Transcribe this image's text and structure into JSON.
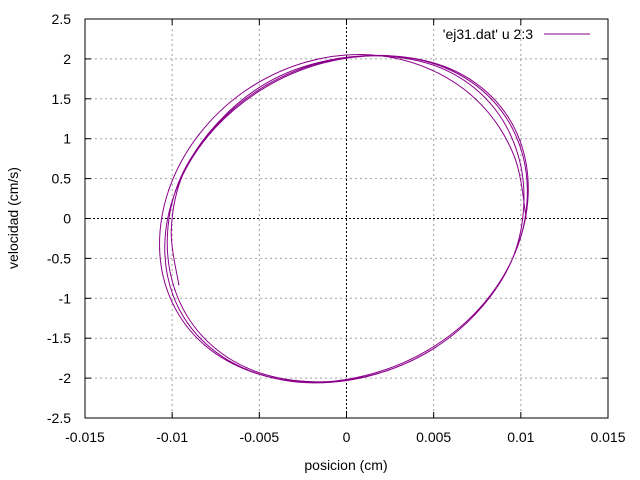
{
  "chart_data": {
    "type": "line",
    "title": "",
    "xlabel": "posicion (cm)",
    "ylabel": "velocidad (cm/s)",
    "xlim": [
      -0.015,
      0.015
    ],
    "ylim": [
      -2.5,
      2.5
    ],
    "xticks": [
      -0.015,
      -0.01,
      -0.005,
      0,
      0.005,
      0.01,
      0.015
    ],
    "xtick_labels": [
      "-0.015",
      "-0.01",
      "-0.005",
      "0",
      "0.005",
      "0.01",
      "0.015"
    ],
    "yticks": [
      -2.5,
      -2,
      -1.5,
      -1,
      -0.5,
      0,
      0.5,
      1,
      1.5,
      2,
      2.5
    ],
    "ytick_labels": [
      "-2.5",
      "-2",
      "-1.5",
      "-1",
      "-0.5",
      "0",
      "0.5",
      "1",
      "1.5",
      "2",
      "2.5"
    ],
    "grid": true,
    "zero_axes": true,
    "legend_position": "top-right",
    "series": [
      {
        "name": "'ej31.dat' u 2:3",
        "color": "#8b008b",
        "x": [
          0.01031,
          0.00964,
          0.00776,
          0.00489,
          0.00138,
          -0.00232,
          -0.00574,
          -0.00847,
          -0.01019,
          -0.01072,
          -0.01,
          -0.00812,
          -0.00533,
          -0.00192,
          0.0017,
          0.00507,
          0.00784,
          0.00969,
          0.01042,
          0.00994,
          0.00831,
          0.00568,
          0.00233,
          -0.00132,
          -0.00476,
          -0.00764,
          -0.0096,
          -0.01041,
          -0.00997,
          -0.00835,
          -0.00574,
          -0.00241,
          0.00123,
          0.00467,
          0.00757,
          0.00957,
          0.01036,
          0.00993,
          0.00834,
          0.00575,
          0.00245,
          -0.00117,
          -0.0046,
          -0.0075,
          -0.00952,
          -0.01027,
          -0.00985,
          -0.00829,
          -0.00573,
          -0.00246,
          0.00113,
          0.00454,
          0.00743,
          0.00945,
          0.01017,
          0.00975,
          0.00822,
          0.00569,
          0.00246,
          -0.0011,
          -0.00449,
          -0.00734,
          -0.00935,
          -0.01005,
          -0.00962
        ],
        "y": [
          0.0,
          0.77,
          1.42,
          1.86,
          2.05,
          1.96,
          1.61,
          1.05,
          0.36,
          -0.38,
          -1.05,
          -1.59,
          -1.93,
          -2.06,
          -1.95,
          -1.62,
          -1.09,
          -0.42,
          0.3,
          0.98,
          1.53,
          1.9,
          2.04,
          1.95,
          1.63,
          1.11,
          0.45,
          -0.26,
          -0.95,
          -1.51,
          -1.89,
          -2.05,
          -1.96,
          -1.65,
          -1.14,
          -0.48,
          0.23,
          0.92,
          1.49,
          1.88,
          2.04,
          1.97,
          1.67,
          1.16,
          0.51,
          -0.2,
          -0.89,
          -1.47,
          -1.87,
          -2.04,
          -1.98,
          -1.69,
          -1.19,
          -0.54,
          0.17,
          0.86,
          1.45,
          1.86,
          2.03,
          1.98,
          1.71,
          1.21,
          0.57,
          -0.14,
          -0.83
        ]
      }
    ]
  }
}
